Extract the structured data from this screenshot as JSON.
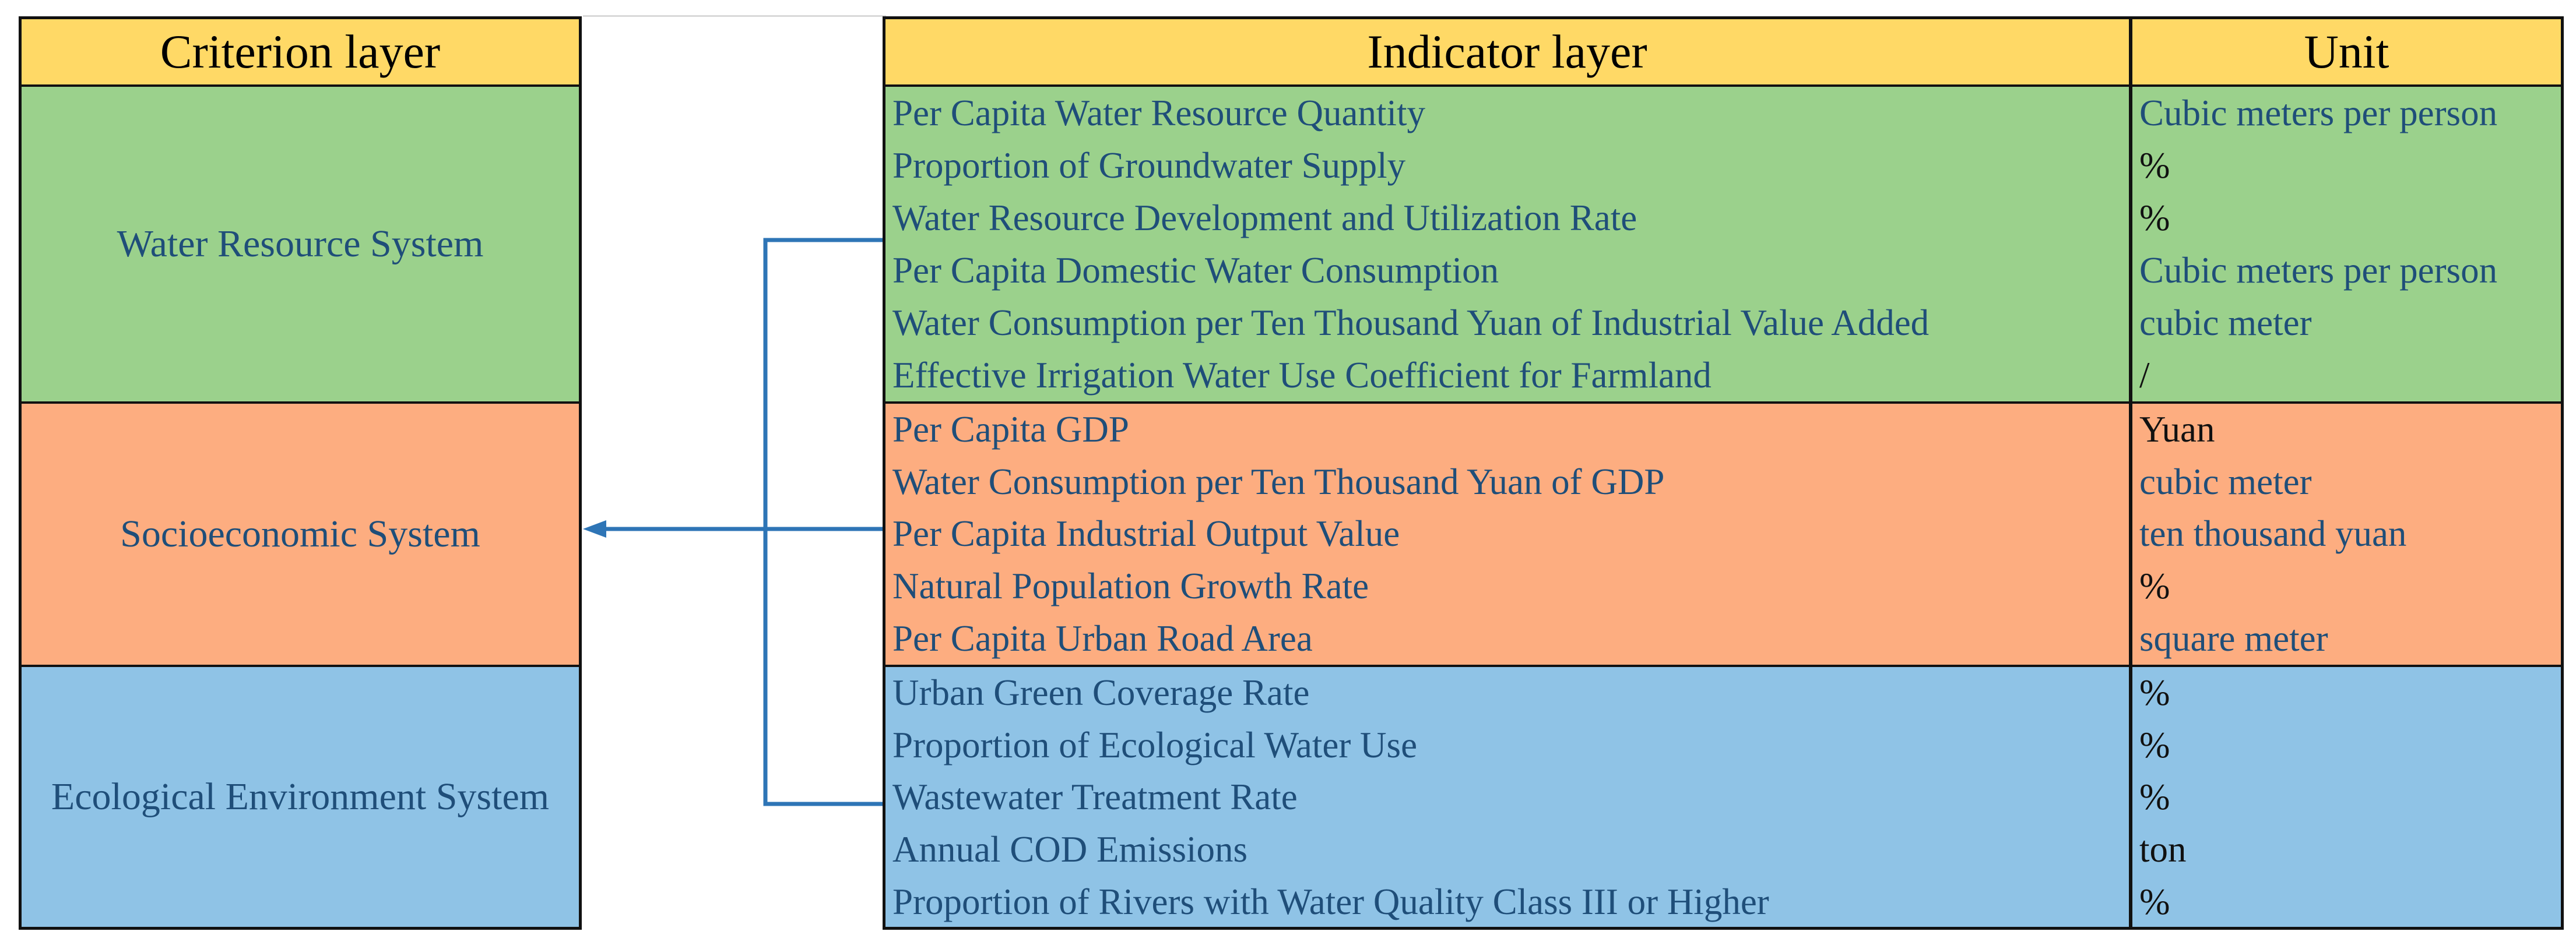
{
  "criterion_table": {
    "header": "Criterion layer",
    "rows": [
      "Water Resource System",
      "Socioeconomic System",
      "Ecological Environment System"
    ]
  },
  "indicator_table": {
    "header_indicator": "Indicator layer",
    "header_unit": "Unit",
    "groups": [
      {
        "system": "Water Resource System",
        "color": "#9bd18c",
        "rows": [
          {
            "indicator": "Per Capita Water Resource Quantity",
            "unit": "Cubic meters per person"
          },
          {
            "indicator": "Proportion of Groundwater Supply",
            "unit": "%"
          },
          {
            "indicator": "Water Resource Development and Utilization Rate",
            "unit": "%"
          },
          {
            "indicator": "Per Capita Domestic Water Consumption",
            "unit": "Cubic meters per person"
          },
          {
            "indicator": "Water Consumption per Ten Thousand Yuan of Industrial Value Added",
            "unit": "cubic meter"
          },
          {
            "indicator": "Effective Irrigation Water Use Coefficient for Farmland",
            "unit": "/"
          }
        ]
      },
      {
        "system": "Socioeconomic System",
        "color": "#fdad80",
        "rows": [
          {
            "indicator": "Per Capita GDP",
            "unit": "Yuan"
          },
          {
            "indicator": "Water Consumption per Ten Thousand Yuan of GDP",
            "unit": "cubic meter"
          },
          {
            "indicator": "Per Capita Industrial Output Value",
            "unit": "ten thousand yuan"
          },
          {
            "indicator": "Natural Population Growth Rate",
            "unit": "%"
          },
          {
            "indicator": "Per Capita Urban Road Area",
            "unit": "square meter"
          }
        ]
      },
      {
        "system": "Ecological Environment System",
        "color": "#8fc3e6",
        "rows": [
          {
            "indicator": "Urban Green Coverage Rate",
            "unit": "%"
          },
          {
            "indicator": "Proportion of Ecological Water Use",
            "unit": "%"
          },
          {
            "indicator": "Wastewater Treatment Rate",
            "unit": "%"
          },
          {
            "indicator": "Annual COD Emissions",
            "unit": "ton"
          },
          {
            "indicator": "Proportion of Rivers with Water Quality Class III or Higher",
            "unit": "%"
          }
        ]
      }
    ]
  },
  "colors": {
    "header": "#ffd966",
    "water": "#9bd18c",
    "socio": "#fdad80",
    "eco": "#8fc3e6",
    "text": "#1f4e79",
    "connector": "#2e75b6"
  }
}
